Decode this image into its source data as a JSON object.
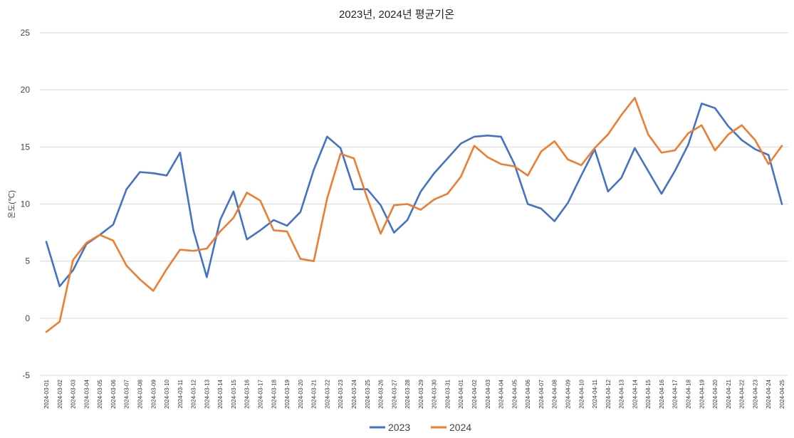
{
  "chart_data": {
    "type": "line",
    "title": "2023년, 2024년 평균기온",
    "ylabel": "온도(℃)",
    "xlabel": "",
    "ylim": [
      -5,
      25
    ],
    "yticks": [
      -5,
      0,
      5,
      10,
      15,
      20,
      25
    ],
    "grid": true,
    "legend_position": "bottom",
    "x": [
      "2024-03-01",
      "2024-03-02",
      "2024-03-03",
      "2024-03-04",
      "2024-03-05",
      "2024-03-06",
      "2024-03-07",
      "2024-03-08",
      "2024-03-09",
      "2024-03-10",
      "2024-03-11",
      "2024-03-12",
      "2024-03-13",
      "2024-03-14",
      "2024-03-15",
      "2024-03-16",
      "2024-03-17",
      "2024-03-18",
      "2024-03-19",
      "2024-03-20",
      "2024-03-21",
      "2024-03-22",
      "2024-03-23",
      "2024-03-24",
      "2024-03-25",
      "2024-03-26",
      "2024-03-27",
      "2024-03-28",
      "2024-03-29",
      "2024-03-30",
      "2024-03-31",
      "2024-04-01",
      "2024-04-02",
      "2024-04-03",
      "2024-04-04",
      "2024-04-05",
      "2024-04-06",
      "2024-04-07",
      "2024-04-08",
      "2024-04-09",
      "2024-04-10",
      "2024-04-11",
      "2024-04-12",
      "2024-04-13",
      "2024-04-14",
      "2024-04-15",
      "2024-04-16",
      "2024-04-17",
      "2024-04-18",
      "2024-04-19",
      "2024-04-20",
      "2024-04-21",
      "2024-04-22",
      "2024-04-23",
      "2024-04-24",
      "2024-04-25"
    ],
    "series": [
      {
        "name": "2023",
        "color": "#4472c4",
        "values": [
          6.7,
          2.8,
          4.2,
          6.5,
          7.3,
          8.2,
          11.3,
          12.8,
          12.7,
          12.5,
          14.5,
          7.7,
          3.6,
          8.6,
          11.1,
          6.9,
          7.7,
          8.6,
          8.1,
          9.3,
          13.0,
          15.9,
          14.9,
          11.3,
          11.3,
          9.9,
          7.5,
          8.6,
          11.1,
          12.7,
          14.0,
          15.3,
          15.9,
          16.0,
          15.9,
          13.5,
          10.0,
          9.6,
          8.5,
          10.1,
          12.5,
          14.8,
          11.1,
          12.3,
          14.9,
          12.9,
          10.9,
          12.9,
          15.2,
          18.8,
          18.4,
          16.8,
          15.6,
          14.8,
          14.3,
          10.0
        ]
      },
      {
        "name": "2024",
        "color": "#ed7d31",
        "values": [
          -1.2,
          -0.3,
          5.1,
          6.6,
          7.3,
          6.8,
          4.6,
          3.4,
          2.4,
          4.3,
          6.0,
          5.9,
          6.1,
          7.6,
          8.8,
          11.0,
          10.3,
          7.7,
          7.6,
          5.2,
          5.0,
          10.5,
          14.4,
          14.0,
          10.5,
          7.4,
          9.9,
          10.0,
          9.5,
          10.4,
          10.9,
          12.4,
          15.1,
          14.1,
          13.5,
          13.3,
          12.5,
          14.6,
          15.5,
          13.9,
          13.4,
          14.9,
          16.1,
          17.8,
          19.3,
          16.1,
          14.5,
          14.7,
          16.2,
          16.9,
          14.7,
          16.1,
          16.9,
          15.6,
          13.5,
          15.1
        ]
      }
    ]
  }
}
